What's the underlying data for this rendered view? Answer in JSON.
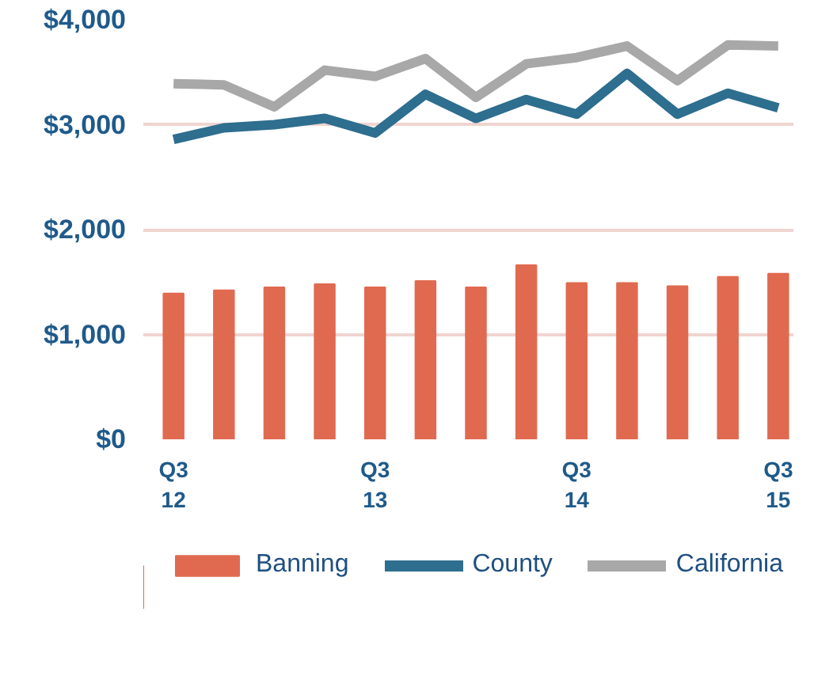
{
  "chart_data": {
    "type": "bar",
    "categories": [
      "Q3\n12",
      null,
      null,
      null,
      "Q3\n13",
      null,
      null,
      null,
      "Q3\n14",
      null,
      null,
      null,
      "Q3\n15"
    ],
    "series": [
      {
        "name": "Banning",
        "color": "#e06a50",
        "values": [
          1390,
          1420,
          1450,
          1480,
          1450,
          1510,
          1450,
          1660,
          1490,
          1490,
          1460,
          1550,
          1580
        ]
      },
      {
        "name": "County",
        "type": "line",
        "color": "#2e6e8e",
        "values": [
          2860,
          2970,
          3000,
          3060,
          2920,
          3290,
          3060,
          3240,
          3100,
          3490,
          3100,
          3300,
          3160
        ]
      },
      {
        "name": "California",
        "type": "line",
        "color": "#a8a8a8",
        "values": [
          3390,
          3380,
          3170,
          3520,
          3460,
          3630,
          3260,
          3580,
          3640,
          3750,
          3420,
          3760,
          3750
        ]
      }
    ],
    "ylim": [
      0,
      4000
    ],
    "yticks": [
      {
        "value": 0,
        "label": "$0"
      },
      {
        "value": 1000,
        "label": "$1,000"
      },
      {
        "value": 2000,
        "label": "$2,000"
      },
      {
        "value": 3000,
        "label": "$3,000"
      },
      {
        "value": 4000,
        "label": "$4,000"
      }
    ],
    "grid": "y",
    "legend": "bottom"
  }
}
